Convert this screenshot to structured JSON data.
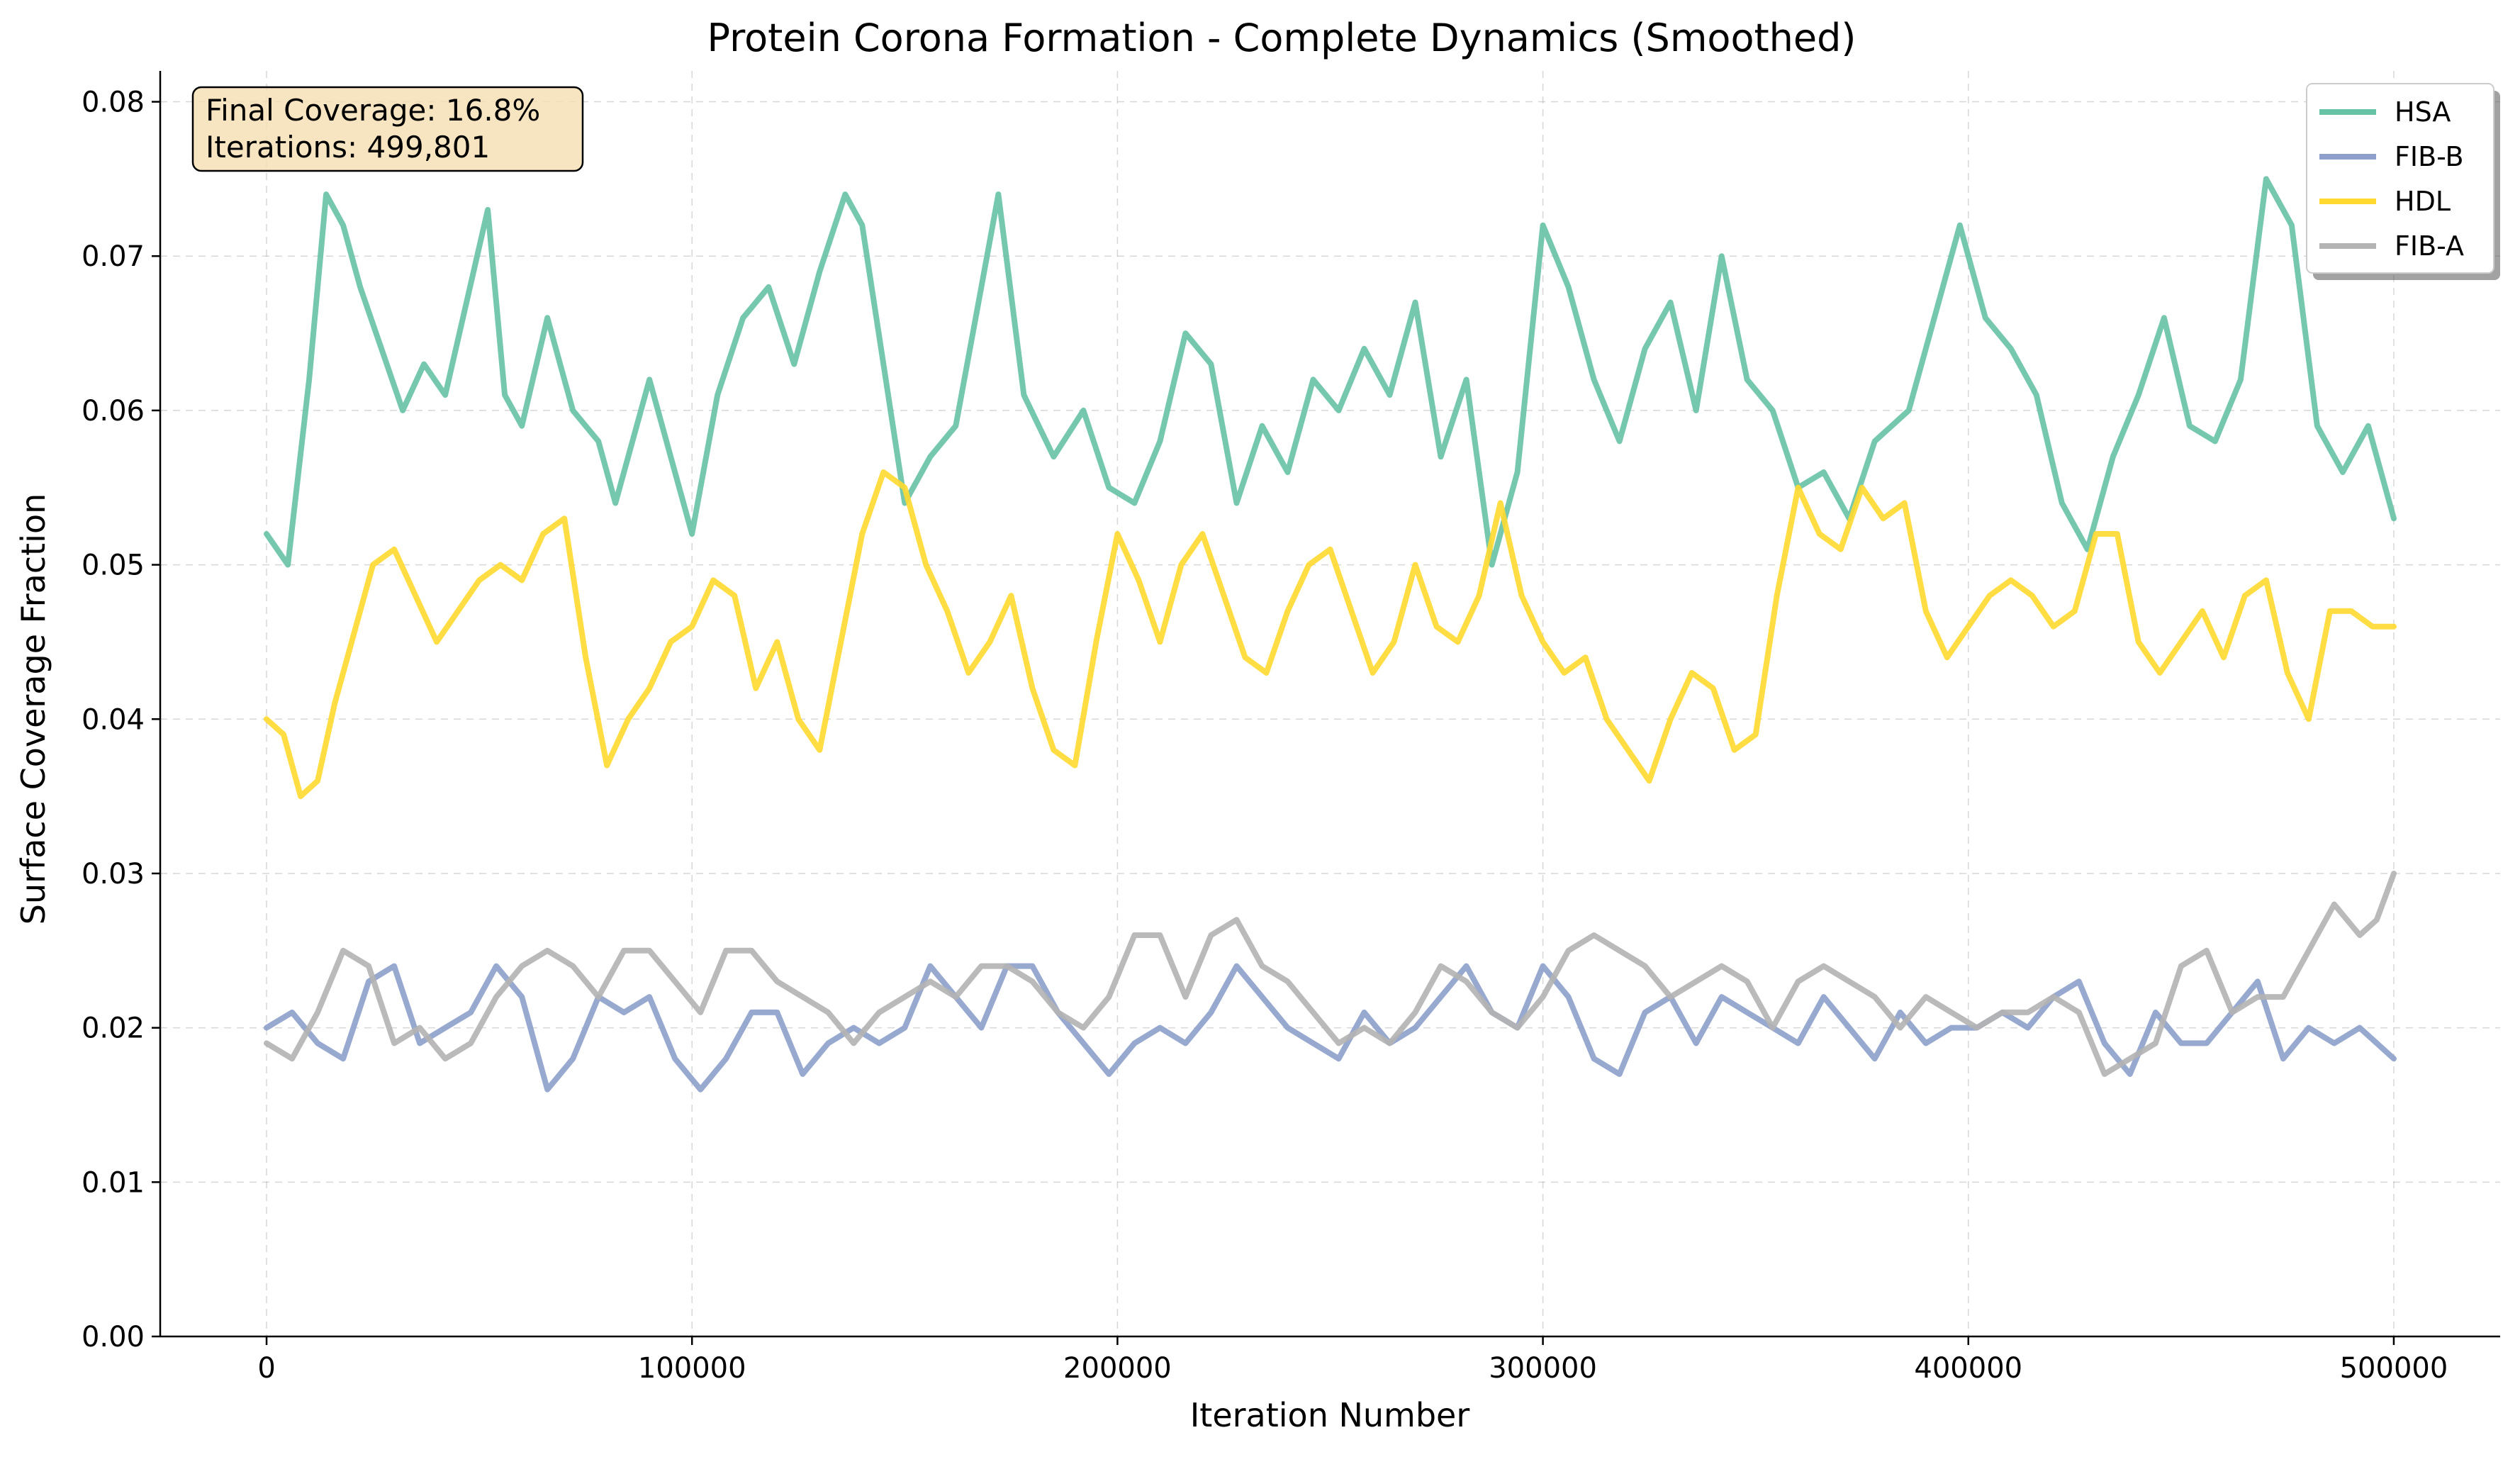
{
  "chart_data": {
    "type": "line",
    "title": "Protein Corona Formation - Complete Dynamics (Smoothed)",
    "xlabel": "Iteration Number",
    "ylabel": "Surface Coverage Fraction",
    "xlim": [
      -25000,
      525000
    ],
    "ylim": [
      0,
      0.082
    ],
    "xticks": [
      0,
      100000,
      200000,
      300000,
      400000,
      500000
    ],
    "yticks": [
      "0.00",
      "0.01",
      "0.02",
      "0.03",
      "0.04",
      "0.05",
      "0.06",
      "0.07",
      "0.08"
    ],
    "grid": true,
    "legend_position": "top-right",
    "annotation": {
      "line1": "Final Coverage: 16.8%",
      "line2": "Iterations: 499,801"
    },
    "series": [
      {
        "name": "HSA",
        "color": "#66c2a5",
        "x": [
          0,
          5000,
          10000,
          14000,
          18000,
          22000,
          27000,
          32000,
          37000,
          42000,
          47000,
          52000,
          56000,
          60000,
          66000,
          72000,
          78000,
          82000,
          90000,
          96000,
          100000,
          106000,
          112000,
          118000,
          124000,
          130000,
          136000,
          140000,
          145000,
          150000,
          156000,
          162000,
          168000,
          172000,
          178000,
          185000,
          192000,
          198000,
          204000,
          210000,
          216000,
          222000,
          228000,
          234000,
          240000,
          246000,
          252000,
          258000,
          264000,
          270000,
          276000,
          282000,
          288000,
          294000,
          300000,
          306000,
          312000,
          318000,
          324000,
          330000,
          336000,
          342000,
          348000,
          354000,
          360000,
          366000,
          372000,
          378000,
          386000,
          392000,
          398000,
          404000,
          410000,
          416000,
          422000,
          428000,
          434000,
          440000,
          446000,
          452000,
          458000,
          464000,
          470000,
          476000,
          482000,
          488000,
          494000,
          500000
        ],
        "values": [
          0.052,
          0.05,
          0.062,
          0.074,
          0.072,
          0.068,
          0.064,
          0.06,
          0.063,
          0.061,
          0.067,
          0.073,
          0.061,
          0.059,
          0.066,
          0.06,
          0.058,
          0.054,
          0.062,
          0.056,
          0.052,
          0.061,
          0.066,
          0.068,
          0.063,
          0.069,
          0.074,
          0.072,
          0.063,
          0.054,
          0.057,
          0.059,
          0.068,
          0.074,
          0.061,
          0.057,
          0.06,
          0.055,
          0.054,
          0.058,
          0.065,
          0.063,
          0.054,
          0.059,
          0.056,
          0.062,
          0.06,
          0.064,
          0.061,
          0.067,
          0.057,
          0.062,
          0.05,
          0.056,
          0.072,
          0.068,
          0.062,
          0.058,
          0.064,
          0.067,
          0.06,
          0.07,
          0.062,
          0.06,
          0.055,
          0.056,
          0.053,
          0.058,
          0.06,
          0.066,
          0.072,
          0.066,
          0.064,
          0.061,
          0.054,
          0.051,
          0.057,
          0.061,
          0.066,
          0.059,
          0.058,
          0.062,
          0.075,
          0.072,
          0.059,
          0.056,
          0.059,
          0.053
        ]
      },
      {
        "name": "FIB-B",
        "color": "#8da0cb",
        "x": [
          0,
          6000,
          12000,
          18000,
          24000,
          30000,
          36000,
          42000,
          48000,
          54000,
          60000,
          66000,
          72000,
          78000,
          84000,
          90000,
          96000,
          102000,
          108000,
          114000,
          120000,
          126000,
          132000,
          138000,
          144000,
          150000,
          156000,
          162000,
          168000,
          174000,
          180000,
          186000,
          192000,
          198000,
          204000,
          210000,
          216000,
          222000,
          228000,
          234000,
          240000,
          246000,
          252000,
          258000,
          264000,
          270000,
          276000,
          282000,
          288000,
          294000,
          300000,
          306000,
          312000,
          318000,
          324000,
          330000,
          336000,
          342000,
          348000,
          354000,
          360000,
          366000,
          372000,
          378000,
          384000,
          390000,
          396000,
          402000,
          408000,
          414000,
          420000,
          426000,
          432000,
          438000,
          444000,
          450000,
          456000,
          462000,
          468000,
          474000,
          480000,
          486000,
          492000,
          500000
        ],
        "values": [
          0.02,
          0.021,
          0.019,
          0.018,
          0.023,
          0.024,
          0.019,
          0.02,
          0.021,
          0.024,
          0.022,
          0.016,
          0.018,
          0.022,
          0.021,
          0.022,
          0.018,
          0.016,
          0.018,
          0.021,
          0.021,
          0.017,
          0.019,
          0.02,
          0.019,
          0.02,
          0.024,
          0.022,
          0.02,
          0.024,
          0.024,
          0.021,
          0.019,
          0.017,
          0.019,
          0.02,
          0.019,
          0.021,
          0.024,
          0.022,
          0.02,
          0.019,
          0.018,
          0.021,
          0.019,
          0.02,
          0.022,
          0.024,
          0.021,
          0.02,
          0.024,
          0.022,
          0.018,
          0.017,
          0.021,
          0.022,
          0.019,
          0.022,
          0.021,
          0.02,
          0.019,
          0.022,
          0.02,
          0.018,
          0.021,
          0.019,
          0.02,
          0.02,
          0.021,
          0.02,
          0.022,
          0.023,
          0.019,
          0.017,
          0.021,
          0.019,
          0.019,
          0.021,
          0.023,
          0.018,
          0.02,
          0.019,
          0.02,
          0.018
        ]
      },
      {
        "name": "HDL",
        "color": "#ffd92f",
        "x": [
          0,
          4000,
          8000,
          12000,
          16000,
          20000,
          25000,
          30000,
          35000,
          40000,
          45000,
          50000,
          55000,
          60000,
          65000,
          70000,
          75000,
          80000,
          85000,
          90000,
          95000,
          100000,
          105000,
          110000,
          115000,
          120000,
          125000,
          130000,
          135000,
          140000,
          145000,
          150000,
          155000,
          160000,
          165000,
          170000,
          175000,
          180000,
          185000,
          190000,
          195000,
          200000,
          205000,
          210000,
          215000,
          220000,
          225000,
          230000,
          235000,
          240000,
          245000,
          250000,
          255000,
          260000,
          265000,
          270000,
          275000,
          280000,
          285000,
          290000,
          295000,
          300000,
          305000,
          310000,
          315000,
          320000,
          325000,
          330000,
          335000,
          340000,
          345000,
          350000,
          355000,
          360000,
          365000,
          370000,
          375000,
          380000,
          385000,
          390000,
          395000,
          400000,
          405000,
          410000,
          415000,
          420000,
          425000,
          430000,
          435000,
          440000,
          445000,
          450000,
          455000,
          460000,
          465000,
          470000,
          475000,
          480000,
          485000,
          490000,
          495000,
          500000
        ],
        "values": [
          0.04,
          0.039,
          0.035,
          0.036,
          0.041,
          0.045,
          0.05,
          0.051,
          0.048,
          0.045,
          0.047,
          0.049,
          0.05,
          0.049,
          0.052,
          0.053,
          0.044,
          0.037,
          0.04,
          0.042,
          0.045,
          0.046,
          0.049,
          0.048,
          0.042,
          0.045,
          0.04,
          0.038,
          0.045,
          0.052,
          0.056,
          0.055,
          0.05,
          0.047,
          0.043,
          0.045,
          0.048,
          0.042,
          0.038,
          0.037,
          0.045,
          0.052,
          0.049,
          0.045,
          0.05,
          0.052,
          0.048,
          0.044,
          0.043,
          0.047,
          0.05,
          0.051,
          0.047,
          0.043,
          0.045,
          0.05,
          0.046,
          0.045,
          0.048,
          0.054,
          0.048,
          0.045,
          0.043,
          0.044,
          0.04,
          0.038,
          0.036,
          0.04,
          0.043,
          0.042,
          0.038,
          0.039,
          0.048,
          0.055,
          0.052,
          0.051,
          0.055,
          0.053,
          0.054,
          0.047,
          0.044,
          0.046,
          0.048,
          0.049,
          0.048,
          0.046,
          0.047,
          0.052,
          0.052,
          0.045,
          0.043,
          0.045,
          0.047,
          0.044,
          0.048,
          0.049,
          0.043,
          0.04,
          0.047,
          0.047,
          0.046,
          0.046
        ]
      },
      {
        "name": "FIB-A",
        "color": "#b3b3b3",
        "x": [
          0,
          6000,
          12000,
          18000,
          24000,
          30000,
          36000,
          42000,
          48000,
          54000,
          60000,
          66000,
          72000,
          78000,
          84000,
          90000,
          96000,
          102000,
          108000,
          114000,
          120000,
          126000,
          132000,
          138000,
          144000,
          150000,
          156000,
          162000,
          168000,
          174000,
          180000,
          186000,
          192000,
          198000,
          204000,
          210000,
          216000,
          222000,
          228000,
          234000,
          240000,
          246000,
          252000,
          258000,
          264000,
          270000,
          276000,
          282000,
          288000,
          294000,
          300000,
          306000,
          312000,
          318000,
          324000,
          330000,
          336000,
          342000,
          348000,
          354000,
          360000,
          366000,
          372000,
          378000,
          384000,
          390000,
          396000,
          402000,
          408000,
          414000,
          420000,
          426000,
          432000,
          438000,
          444000,
          450000,
          456000,
          462000,
          468000,
          474000,
          480000,
          486000,
          492000,
          496000,
          500000
        ],
        "values": [
          0.019,
          0.018,
          0.021,
          0.025,
          0.024,
          0.019,
          0.02,
          0.018,
          0.019,
          0.022,
          0.024,
          0.025,
          0.024,
          0.022,
          0.025,
          0.025,
          0.023,
          0.021,
          0.025,
          0.025,
          0.023,
          0.022,
          0.021,
          0.019,
          0.021,
          0.022,
          0.023,
          0.022,
          0.024,
          0.024,
          0.023,
          0.021,
          0.02,
          0.022,
          0.026,
          0.026,
          0.022,
          0.026,
          0.027,
          0.024,
          0.023,
          0.021,
          0.019,
          0.02,
          0.019,
          0.021,
          0.024,
          0.023,
          0.021,
          0.02,
          0.022,
          0.025,
          0.026,
          0.025,
          0.024,
          0.022,
          0.023,
          0.024,
          0.023,
          0.02,
          0.023,
          0.024,
          0.023,
          0.022,
          0.02,
          0.022,
          0.021,
          0.02,
          0.021,
          0.021,
          0.022,
          0.021,
          0.017,
          0.018,
          0.019,
          0.024,
          0.025,
          0.021,
          0.022,
          0.022,
          0.025,
          0.028,
          0.026,
          0.027,
          0.03
        ]
      }
    ]
  }
}
